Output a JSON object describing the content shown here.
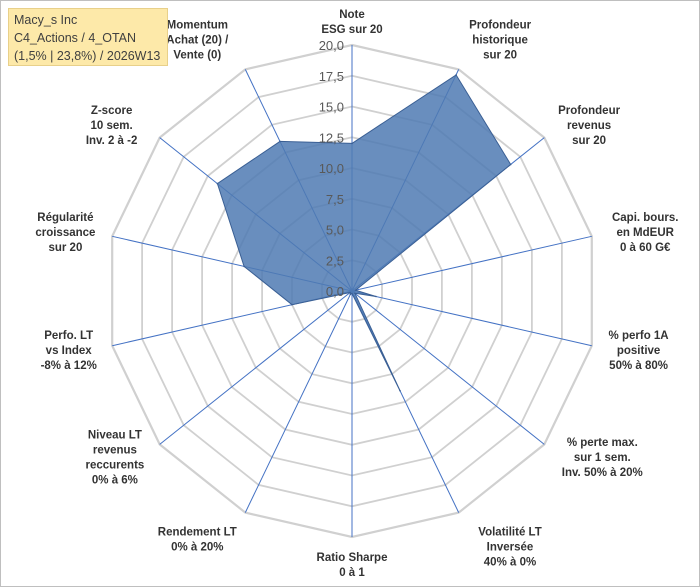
{
  "title": {
    "line1": "Macy_s Inc",
    "line2": "C4_Actions / 4_OTAN",
    "line3": "(1,5% | 23,8%) / 2026W13"
  },
  "chart_data": {
    "type": "radar",
    "rmin": 0,
    "rmax": 20,
    "ticks": [
      "0,0",
      "2,5",
      "5,0",
      "7,5",
      "10,0",
      "12,5",
      "15,0",
      "17,5",
      "20,0"
    ],
    "grid": true,
    "colors": {
      "fill": "#4f7ab3",
      "stroke": "#3a5f94",
      "grid": "#d0d0d0",
      "spoke": "#4472c4"
    },
    "axes": [
      {
        "label": [
          "Note",
          "ESG sur 20"
        ],
        "value": 12.0
      },
      {
        "label": [
          "Profondeur",
          "historique",
          "sur 20"
        ],
        "value": 19.5
      },
      {
        "label": [
          "Profondeur",
          "revenus",
          "sur 20"
        ],
        "value": 16.5
      },
      {
        "label": [
          "Capi. bours.",
          "en MdEUR",
          "0 à 60 G€"
        ],
        "value": 0.3
      },
      {
        "label": [
          "% perfo 1A",
          "positive",
          "50% à 80%"
        ],
        "value": 2.0
      },
      {
        "label": [
          "% perte max.",
          "sur 1 sem.",
          "Inv. 50% à 20%"
        ],
        "value": 0.3
      },
      {
        "label": [
          "Volatilité LT",
          "Inversée",
          "40% à 0%"
        ],
        "value": 9.0
      },
      {
        "label": [
          "Ratio Sharpe",
          "0 à 1"
        ],
        "value": 0.2
      },
      {
        "label": [
          "Rendement LT",
          "0% à 20%"
        ],
        "value": 0.3
      },
      {
        "label": [
          "Niveau LT",
          "revenus",
          "reccurents",
          "0% à 6%"
        ],
        "value": 0.2
      },
      {
        "label": [
          "Perfo. LT",
          "vs Index",
          "-8% à 12%"
        ],
        "value": 5.0
      },
      {
        "label": [
          "Régularité",
          "croissance",
          "sur 20"
        ],
        "value": 9.0
      },
      {
        "label": [
          "Z-score",
          "10 sem.",
          "Inv. 2 à -2"
        ],
        "value": 14.0
      },
      {
        "label": [
          "Momentum",
          "Achat (20) /",
          "Vente (0)"
        ],
        "value": 13.5
      }
    ]
  }
}
